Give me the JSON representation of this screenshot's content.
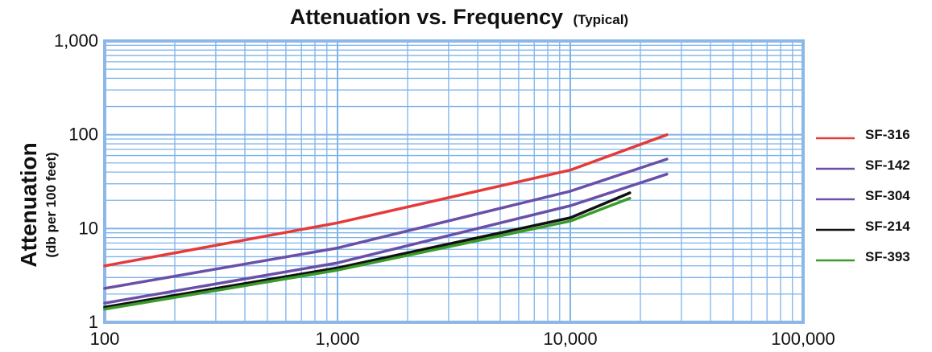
{
  "chart_data": {
    "type": "line",
    "title": "Attenuation vs. Frequency",
    "title_suffix": "(Typical)",
    "ylabel": "Attenuation",
    "ylabel_sub": "(db per 100 feet)",
    "x_scale": "log",
    "y_scale": "log",
    "xlim": [
      100,
      100000
    ],
    "ylim": [
      1,
      1000
    ],
    "x_tick_labels": [
      "100",
      "1,000",
      "10,000",
      "100,000"
    ],
    "y_tick_labels": [
      "1",
      "10",
      "100",
      "1,000"
    ],
    "grid": true,
    "grid_color": "#7eb3ea",
    "frame_color": "#8cb8e8",
    "legend_position": "right",
    "series": [
      {
        "name": "SF-316",
        "color": "#e53a3a",
        "x": [
          100,
          1000,
          10000,
          26000
        ],
        "y": [
          4.0,
          11.5,
          42,
          100
        ]
      },
      {
        "name": "SF-142",
        "color": "#6a4fa8",
        "x": [
          100,
          1000,
          10000,
          26000
        ],
        "y": [
          2.3,
          6.2,
          25,
          55
        ]
      },
      {
        "name": "SF-304",
        "color": "#6a4fa8",
        "x": [
          100,
          1000,
          10000,
          26000
        ],
        "y": [
          1.6,
          4.3,
          17.5,
          38
        ]
      },
      {
        "name": "SF-214",
        "color": "#111111",
        "x": [
          100,
          1000,
          10000,
          18000
        ],
        "y": [
          1.45,
          3.8,
          13,
          24
        ]
      },
      {
        "name": "SF-393",
        "color": "#3a9a2a",
        "x": [
          100,
          1000,
          10000,
          18000
        ],
        "y": [
          1.38,
          3.6,
          12,
          21
        ]
      }
    ]
  }
}
